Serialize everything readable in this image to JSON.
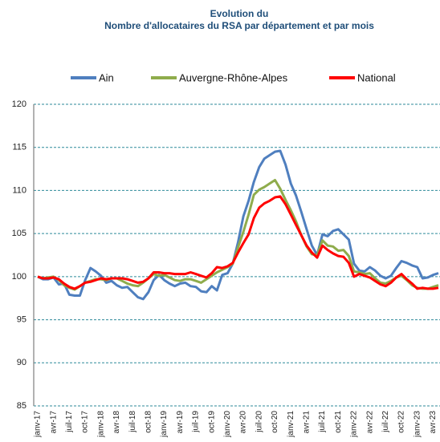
{
  "chart_data": {
    "type": "line",
    "title": "Evolution du",
    "subtitle": "Nombre d'allocataires du RSA par département et par mois",
    "categories": [
      "janv-17",
      null,
      null,
      "avr-17",
      null,
      null,
      "juil-17",
      null,
      null,
      "oct-17",
      null,
      null,
      "janv-18",
      null,
      null,
      "avr-18",
      null,
      null,
      "juil-18",
      null,
      null,
      "oct-18",
      null,
      null,
      "janv-19",
      null,
      null,
      "avr-19",
      null,
      null,
      "juil-19",
      null,
      null,
      "oct-19",
      null,
      null,
      "janv-20",
      null,
      null,
      "avr-20",
      null,
      null,
      "juil-20",
      null,
      null,
      "oct-20",
      null,
      null,
      "janv-21",
      null,
      null,
      "avr-21",
      null,
      null,
      "juil-21",
      null,
      null,
      "oct-21",
      null,
      null,
      "janv-22",
      null,
      null,
      "avr-22",
      null,
      null,
      "juil-22",
      null,
      null,
      "oct-22",
      null,
      null,
      "janv-23",
      null,
      null,
      "avr-23",
      null
    ],
    "series": [
      {
        "name": "Ain",
        "color": "#4f7fbf",
        "values": [
          100.0,
          99.7,
          99.7,
          99.9,
          99.1,
          99.2,
          97.9,
          97.8,
          97.8,
          99.6,
          101.0,
          100.6,
          100.1,
          99.3,
          99.5,
          99.0,
          98.7,
          98.8,
          98.2,
          97.6,
          97.4,
          98.2,
          99.6,
          100.2,
          99.6,
          99.2,
          98.9,
          99.2,
          99.3,
          98.9,
          98.8,
          98.3,
          98.2,
          98.9,
          98.4,
          100.2,
          100.4,
          101.5,
          104.0,
          107.0,
          108.8,
          111.0,
          112.7,
          113.7,
          114.1,
          114.5,
          114.6,
          113.0,
          110.8,
          109.4,
          107.5,
          105.5,
          103.6,
          102.5,
          104.9,
          104.7,
          105.3,
          105.5,
          104.9,
          104.3,
          101.5,
          100.7,
          100.6,
          101.1,
          100.7,
          100.1,
          99.8,
          100.1,
          101.0,
          101.8,
          101.6,
          101.3,
          101.1,
          99.8,
          99.9,
          100.2,
          100.4
        ]
      },
      {
        "name": "Auvergne-Rhône-Alpes",
        "color": "#8fac4c",
        "values": [
          100.0,
          99.8,
          99.9,
          100.0,
          99.6,
          99.0,
          98.7,
          98.5,
          98.9,
          99.3,
          99.5,
          99.7,
          99.7,
          99.6,
          99.8,
          99.8,
          99.5,
          99.2,
          99.0,
          98.9,
          99.3,
          99.8,
          100.3,
          100.1,
          100.2,
          99.9,
          99.6,
          99.5,
          99.7,
          99.7,
          99.5,
          99.3,
          99.7,
          100.1,
          100.5,
          100.8,
          101.1,
          101.5,
          103.4,
          105.2,
          107.2,
          109.5,
          110.1,
          110.4,
          110.8,
          111.2,
          110.2,
          108.9,
          107.7,
          106.4,
          104.8,
          103.5,
          102.6,
          102.5,
          104.2,
          103.6,
          103.5,
          103.0,
          103.1,
          102.4,
          100.6,
          100.5,
          100.3,
          100.4,
          99.8,
          99.3,
          99.2,
          99.5,
          99.9,
          100.1,
          99.6,
          99.0,
          98.7,
          98.6,
          98.6,
          98.8,
          99.0
        ]
      },
      {
        "name": "National",
        "color": "#ff0000",
        "values": [
          100.0,
          99.8,
          99.8,
          99.9,
          99.7,
          99.2,
          98.8,
          98.6,
          98.9,
          99.3,
          99.4,
          99.6,
          99.8,
          99.7,
          99.8,
          99.8,
          99.8,
          99.7,
          99.5,
          99.3,
          99.4,
          99.8,
          100.5,
          100.5,
          100.4,
          100.4,
          100.3,
          100.3,
          100.3,
          100.5,
          100.3,
          100.1,
          99.9,
          100.4,
          101.1,
          101.0,
          101.2,
          101.6,
          102.8,
          103.9,
          104.9,
          106.8,
          108.0,
          108.5,
          108.8,
          109.2,
          109.3,
          108.4,
          107.2,
          106.0,
          104.8,
          103.6,
          102.8,
          102.2,
          103.6,
          103.1,
          102.7,
          102.4,
          102.3,
          101.6,
          100.0,
          100.3,
          100.1,
          99.9,
          99.5,
          99.1,
          98.9,
          99.3,
          99.9,
          100.3,
          99.7,
          99.2,
          98.6,
          98.7,
          98.6,
          98.6,
          98.7
        ]
      }
    ],
    "ylim": [
      85,
      120
    ],
    "yticks": [
      85,
      90,
      95,
      100,
      105,
      110,
      115,
      120
    ],
    "grid": true,
    "legend": "top"
  }
}
